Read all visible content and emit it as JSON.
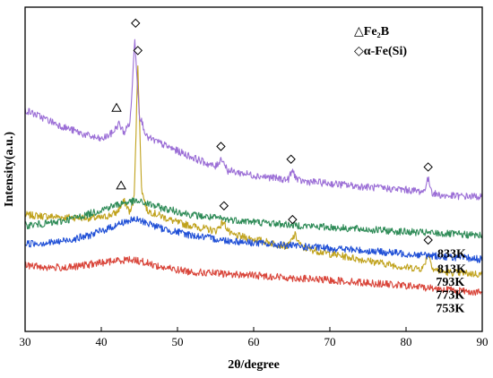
{
  "chart_data": {
    "type": "line",
    "xlabel": "2θ/degree",
    "ylabel": "Intensity(a.u.)",
    "xlim": [
      30,
      90
    ],
    "xticks": [
      30,
      40,
      50,
      60,
      70,
      80,
      90
    ],
    "yticks_shown": false,
    "grid": false,
    "legend_position": "top-right",
    "legend": [
      {
        "marker": "triangle",
        "text": "△Fe₂B"
      },
      {
        "marker": "diamond",
        "text": "◇α-Fe(Si)"
      }
    ],
    "series": [
      {
        "name": "833K",
        "color": "#c0a21c",
        "points": [
          [
            30,
            2.05
          ],
          [
            35,
            2.0
          ],
          [
            40,
            1.98
          ],
          [
            42,
            2.1
          ],
          [
            43,
            2.35
          ],
          [
            43.8,
            2.1
          ],
          [
            44.3,
            2.4
          ],
          [
            44.8,
            5.3
          ],
          [
            45.3,
            2.6
          ],
          [
            46,
            2.15
          ],
          [
            50,
            1.88
          ],
          [
            55,
            1.7
          ],
          [
            56,
            1.9
          ],
          [
            57,
            1.62
          ],
          [
            60,
            1.52
          ],
          [
            64.5,
            1.36
          ],
          [
            65.4,
            1.62
          ],
          [
            66.3,
            1.34
          ],
          [
            70,
            1.2
          ],
          [
            75,
            1.05
          ],
          [
            80,
            0.9
          ],
          [
            82.2,
            0.88
          ],
          [
            82.9,
            1.2
          ],
          [
            83.6,
            0.86
          ],
          [
            85,
            0.8
          ],
          [
            90,
            0.75
          ]
        ]
      },
      {
        "name": "813K",
        "color": "#9b6ed6",
        "points": [
          [
            30,
            4.35
          ],
          [
            35,
            3.98
          ],
          [
            38,
            3.8
          ],
          [
            40,
            3.7
          ],
          [
            41.5,
            3.85
          ],
          [
            42.3,
            4.05
          ],
          [
            43,
            3.85
          ],
          [
            43.8,
            4.1
          ],
          [
            44.4,
            5.9
          ],
          [
            45,
            4.25
          ],
          [
            46,
            3.75
          ],
          [
            50,
            3.45
          ],
          [
            55,
            3.1
          ],
          [
            55.8,
            3.3
          ],
          [
            56.6,
            3.02
          ],
          [
            60,
            2.92
          ],
          [
            64.5,
            2.82
          ],
          [
            65.1,
            3.02
          ],
          [
            65.8,
            2.8
          ],
          [
            70,
            2.74
          ],
          [
            75,
            2.66
          ],
          [
            80,
            2.6
          ],
          [
            82.3,
            2.56
          ],
          [
            82.9,
            2.84
          ],
          [
            83.5,
            2.52
          ],
          [
            85,
            2.47
          ],
          [
            90,
            2.45
          ]
        ]
      },
      {
        "name": "793K",
        "color": "#2e8b57",
        "points": [
          [
            30,
            1.82
          ],
          [
            34,
            1.88
          ],
          [
            38,
            2.05
          ],
          [
            41,
            2.22
          ],
          [
            43,
            2.32
          ],
          [
            44.5,
            2.35
          ],
          [
            46,
            2.3
          ],
          [
            48,
            2.2
          ],
          [
            52,
            2.05
          ],
          [
            56,
            1.96
          ],
          [
            60,
            1.9
          ],
          [
            66,
            1.82
          ],
          [
            72,
            1.76
          ],
          [
            80,
            1.68
          ],
          [
            90,
            1.6
          ]
        ]
      },
      {
        "name": "773K",
        "color": "#1f4fd6",
        "points": [
          [
            30,
            1.42
          ],
          [
            34,
            1.45
          ],
          [
            38,
            1.58
          ],
          [
            41,
            1.76
          ],
          [
            43,
            1.9
          ],
          [
            44.5,
            1.95
          ],
          [
            46,
            1.88
          ],
          [
            48,
            1.75
          ],
          [
            52,
            1.6
          ],
          [
            56,
            1.5
          ],
          [
            60,
            1.44
          ],
          [
            66,
            1.36
          ],
          [
            72,
            1.3
          ],
          [
            80,
            1.2
          ],
          [
            90,
            1.08
          ]
        ]
      },
      {
        "name": "753K",
        "color": "#d9453a",
        "points": [
          [
            30,
            0.95
          ],
          [
            33,
            0.9
          ],
          [
            36,
            0.9
          ],
          [
            39,
            0.98
          ],
          [
            42,
            1.05
          ],
          [
            44,
            1.08
          ],
          [
            46,
            1.0
          ],
          [
            48,
            0.9
          ],
          [
            52,
            0.8
          ],
          [
            56,
            0.76
          ],
          [
            60,
            0.73
          ],
          [
            66,
            0.66
          ],
          [
            72,
            0.6
          ],
          [
            80,
            0.5
          ],
          [
            90,
            0.35
          ]
        ]
      }
    ],
    "annotations": [
      {
        "marker": "diamond",
        "x": 44.8,
        "y": 5.65
      },
      {
        "marker": "triangle",
        "x": 42.6,
        "y": 2.7
      },
      {
        "marker": "diamond",
        "x": 56.1,
        "y": 2.25
      },
      {
        "marker": "diamond",
        "x": 65.1,
        "y": 1.95
      },
      {
        "marker": "diamond",
        "x": 82.9,
        "y": 1.5
      },
      {
        "marker": "diamond",
        "x": 44.5,
        "y": 6.25
      },
      {
        "marker": "triangle",
        "x": 42.0,
        "y": 4.4
      },
      {
        "marker": "diamond",
        "x": 55.7,
        "y": 3.55
      },
      {
        "marker": "diamond",
        "x": 64.9,
        "y": 3.27
      },
      {
        "marker": "diamond",
        "x": 82.9,
        "y": 3.1
      }
    ],
    "curve_labels": [
      {
        "text": "833K",
        "x": 86.0,
        "y": 1.12
      },
      {
        "text": "813K",
        "x": 86.0,
        "y": 0.78
      },
      {
        "text": "793K",
        "x": 85.8,
        "y": 0.5
      },
      {
        "text": "773K",
        "x": 85.8,
        "y": 0.22
      },
      {
        "text": "753K",
        "x": 85.8,
        "y": -0.08
      }
    ]
  }
}
